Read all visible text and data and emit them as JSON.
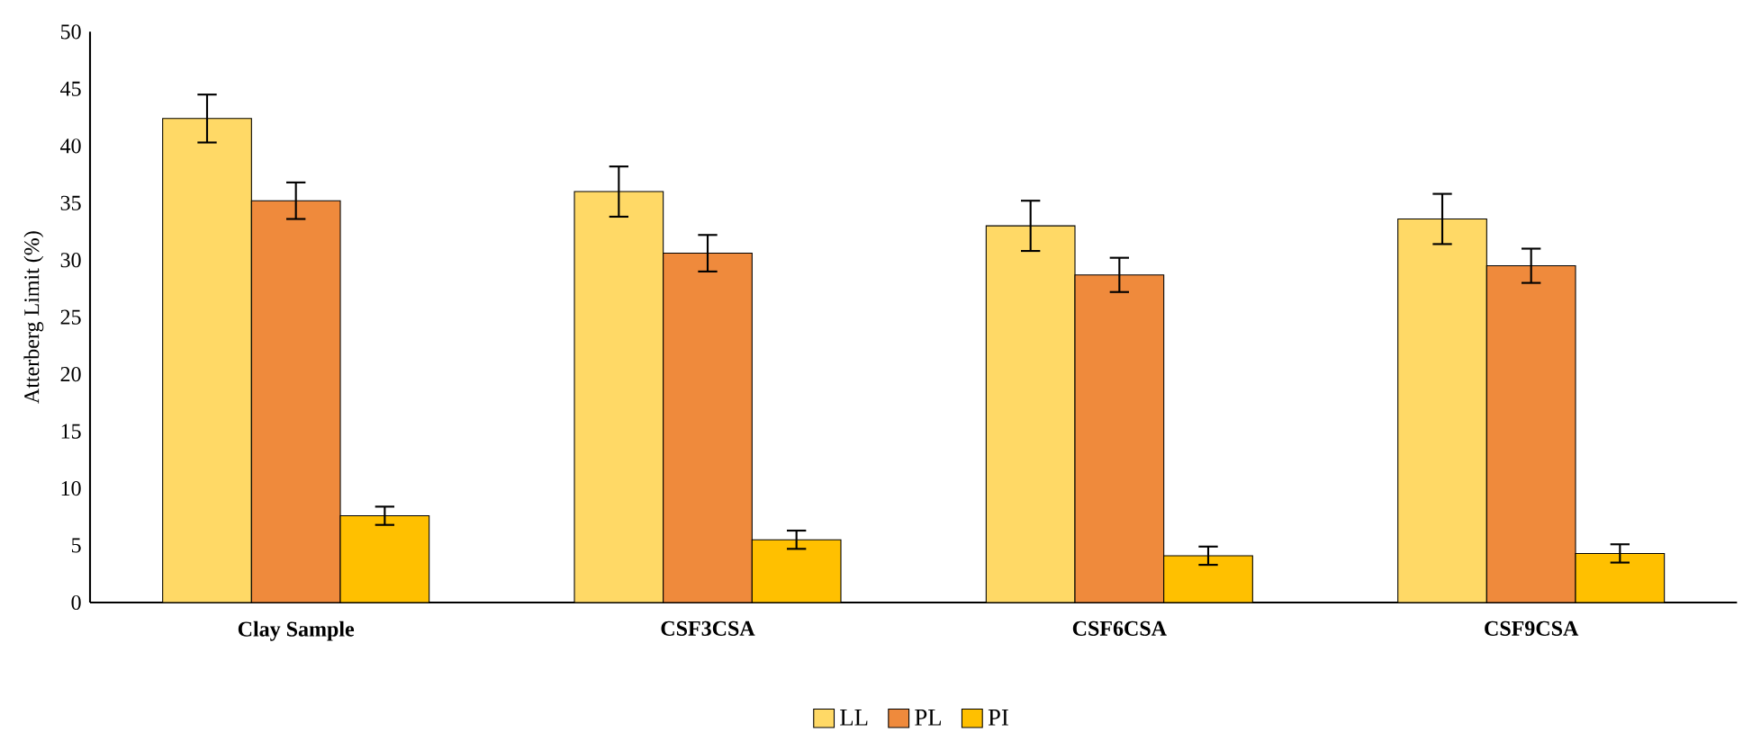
{
  "chart_data": {
    "type": "bar",
    "ylabel": "Atterberg Limit (%)",
    "categories": [
      "Clay Sample",
      "CSF3CSA",
      "CSF6CSA",
      "CSF9CSA"
    ],
    "series": [
      {
        "name": "LL",
        "color": "#ffd966",
        "values": [
          42.4,
          36.0,
          33.0,
          33.6
        ],
        "errors": [
          2.1,
          2.2,
          2.2,
          2.2
        ]
      },
      {
        "name": "PL",
        "color": "#ef8a3c",
        "values": [
          35.2,
          30.6,
          28.7,
          29.5
        ],
        "errors": [
          1.6,
          1.6,
          1.5,
          1.5
        ]
      },
      {
        "name": "PI",
        "color": "#ffc000",
        "values": [
          7.6,
          5.5,
          4.1,
          4.3
        ],
        "errors": [
          0.8,
          0.8,
          0.8,
          0.8
        ]
      }
    ],
    "ylim": [
      0,
      50
    ],
    "yticks": [
      0,
      5,
      10,
      15,
      20,
      25,
      30,
      35,
      40,
      45,
      50
    ],
    "grid": false,
    "legend": "bottom"
  }
}
